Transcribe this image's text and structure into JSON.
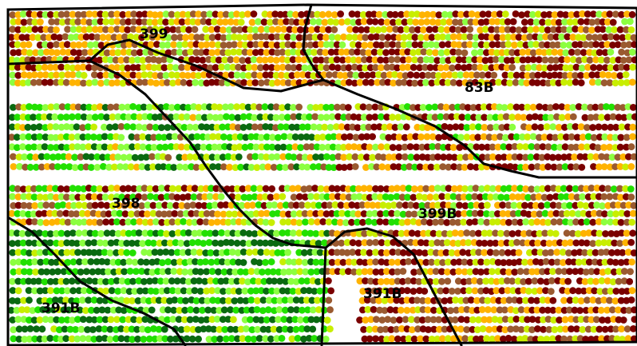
{
  "map": {
    "palette": {
      "darkred": "#7a0000",
      "brown": "#9a5a30",
      "orange": "#ffb300",
      "yellowgreen": "#c8ee00",
      "lightgreen": "#8cff40",
      "green": "#22e000",
      "darkgreen": "#0a6a10"
    },
    "zones": [
      {
        "id": "399",
        "label": "399"
      },
      {
        "id": "83B",
        "label": "83B"
      },
      {
        "id": "398",
        "label": "398"
      },
      {
        "id": "399B",
        "label": "399B"
      },
      {
        "id": "391B-a",
        "label": "391B"
      },
      {
        "id": "391B-b",
        "label": "391B"
      }
    ]
  }
}
